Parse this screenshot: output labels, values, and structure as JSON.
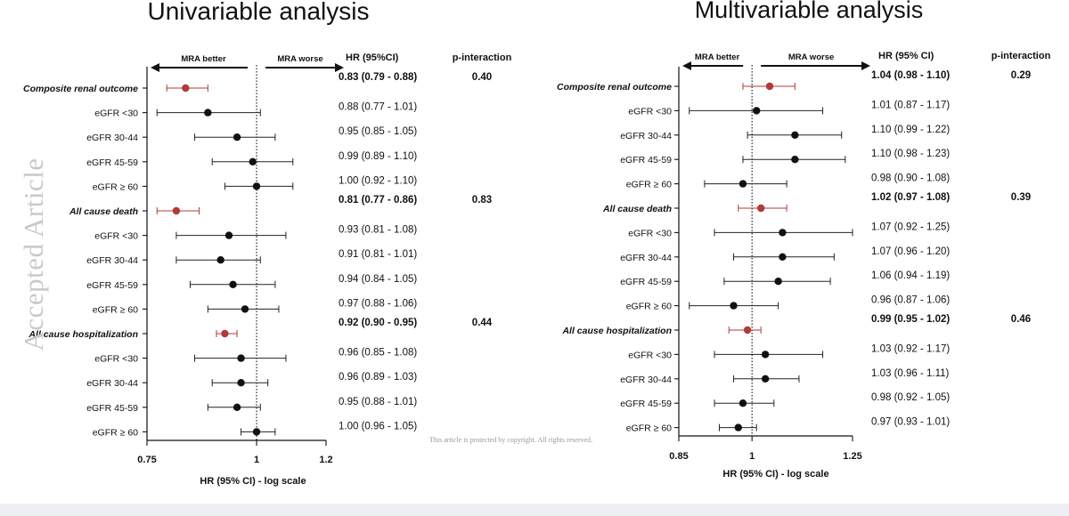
{
  "watermark": "Accepted Article",
  "copyright": "This article is protected by copyright. All rights reserved.",
  "colors": {
    "highlight": "#b03a3a",
    "marker": "#111111",
    "axis": "#111111",
    "ci_gray": "#888888"
  },
  "chart_data": [
    {
      "type": "forest",
      "title": "Univariable analysis",
      "xlabel": "HR (95% CI) - log scale",
      "scale": "log",
      "xlim": [
        0.75,
        1.2
      ],
      "ticks": [
        "0.75",
        "1",
        "1.2"
      ],
      "tick_values": [
        0.75,
        1.0,
        1.2
      ],
      "ref_line": 1,
      "arrow_left_label": "MRA better",
      "arrow_right_label": "MRA worse",
      "col_hr_header": "HR (95%CI)",
      "col_p_header": "p-interaction",
      "rows": [
        {
          "label": "Composite renal outcome",
          "group": true,
          "hr": 0.83,
          "lo": 0.79,
          "hi": 0.88,
          "text": "0.83 (0.79 - 0.88)",
          "p": "0.40"
        },
        {
          "label": "eGFR <30",
          "group": false,
          "hr": 0.88,
          "lo": 0.77,
          "hi": 1.01,
          "text": "0.88 (0.77 - 1.01)",
          "p": ""
        },
        {
          "label": "eGFR 30-44",
          "group": false,
          "hr": 0.95,
          "lo": 0.85,
          "hi": 1.05,
          "text": "0.95 (0.85 - 1.05)",
          "p": ""
        },
        {
          "label": "eGFR 45-59",
          "group": false,
          "hr": 0.99,
          "lo": 0.89,
          "hi": 1.1,
          "text": "0.99 (0.89 - 1.10)",
          "p": ""
        },
        {
          "label": "eGFR ≥ 60",
          "group": false,
          "hr": 1.0,
          "lo": 0.92,
          "hi": 1.1,
          "text": "1.00 (0.92 - 1.10)",
          "p": ""
        },
        {
          "label": "All cause death",
          "group": true,
          "hr": 0.81,
          "lo": 0.77,
          "hi": 0.86,
          "text": "0.81 (0.77 - 0.86)",
          "p": "0.83"
        },
        {
          "label": "eGFR <30",
          "group": false,
          "hr": 0.93,
          "lo": 0.81,
          "hi": 1.08,
          "text": "0.93 (0.81 - 1.08)",
          "p": ""
        },
        {
          "label": "eGFR 30-44",
          "group": false,
          "hr": 0.91,
          "lo": 0.81,
          "hi": 1.01,
          "text": "0.91 (0.81 - 1.01)",
          "p": ""
        },
        {
          "label": "eGFR 45-59",
          "group": false,
          "hr": 0.94,
          "lo": 0.84,
          "hi": 1.05,
          "text": "0.94 (0.84 - 1.05)",
          "p": ""
        },
        {
          "label": "eGFR ≥ 60",
          "group": false,
          "hr": 0.97,
          "lo": 0.88,
          "hi": 1.06,
          "text": "0.97 (0.88 - 1.06)",
          "p": ""
        },
        {
          "label": "All cause hospitalization",
          "group": true,
          "hr": 0.92,
          "lo": 0.9,
          "hi": 0.95,
          "text": "0.92 (0.90 - 0.95)",
          "p": "0.44"
        },
        {
          "label": "eGFR <30",
          "group": false,
          "hr": 0.96,
          "lo": 0.85,
          "hi": 1.08,
          "text": "0.96 (0.85 - 1.08)",
          "p": ""
        },
        {
          "label": "eGFR 30-44",
          "group": false,
          "hr": 0.96,
          "lo": 0.89,
          "hi": 1.03,
          "text": "0.96 (0.89 - 1.03)",
          "p": ""
        },
        {
          "label": "eGFR 45-59",
          "group": false,
          "hr": 0.95,
          "lo": 0.88,
          "hi": 1.01,
          "text": "0.95 (0.88 - 1.01)",
          "p": ""
        },
        {
          "label": "eGFR ≥ 60",
          "group": false,
          "hr": 1.0,
          "lo": 0.96,
          "hi": 1.05,
          "text": "1.00 (0.96 - 1.05)",
          "p": ""
        }
      ]
    },
    {
      "type": "forest",
      "title": "Multivariable analysis",
      "xlabel": "HR (95% CI) - log scale",
      "scale": "log",
      "xlim": [
        0.85,
        1.25
      ],
      "ticks": [
        "0.85",
        "1",
        "1.25"
      ],
      "tick_values": [
        0.85,
        1.0,
        1.25
      ],
      "ref_line": 1,
      "arrow_left_label": "MRA better",
      "arrow_right_label": "MRA worse",
      "col_hr_header": "HR (95% CI)",
      "col_p_header": "p-interaction",
      "rows": [
        {
          "label": "Composite renal outcome",
          "group": true,
          "hr": 1.04,
          "lo": 0.98,
          "hi": 1.1,
          "text": "1.04 (0.98 - 1.10)",
          "p": "0.29"
        },
        {
          "label": "eGFR <30",
          "group": false,
          "hr": 1.01,
          "lo": 0.87,
          "hi": 1.17,
          "text": "1.01 (0.87 - 1.17)",
          "p": ""
        },
        {
          "label": "eGFR 30-44",
          "group": false,
          "hr": 1.1,
          "lo": 0.99,
          "hi": 1.22,
          "text": "1.10 (0.99 - 1.22)",
          "p": ""
        },
        {
          "label": "eGFR 45-59",
          "group": false,
          "hr": 1.1,
          "lo": 0.98,
          "hi": 1.23,
          "text": "1.10 (0.98 - 1.23)",
          "p": ""
        },
        {
          "label": "eGFR ≥ 60",
          "group": false,
          "hr": 0.98,
          "lo": 0.9,
          "hi": 1.08,
          "text": "0.98 (0.90 - 1.08)",
          "p": ""
        },
        {
          "label": "All cause death",
          "group": true,
          "hr": 1.02,
          "lo": 0.97,
          "hi": 1.08,
          "text": "1.02 (0.97 - 1.08)",
          "p": "0.39"
        },
        {
          "label": "eGFR <30",
          "group": false,
          "hr": 1.07,
          "lo": 0.92,
          "hi": 1.25,
          "text": "1.07 (0.92 - 1.25)",
          "p": ""
        },
        {
          "label": "eGFR 30-44",
          "group": false,
          "hr": 1.07,
          "lo": 0.96,
          "hi": 1.2,
          "text": "1.07 (0.96 - 1.20)",
          "p": ""
        },
        {
          "label": "eGFR 45-59",
          "group": false,
          "hr": 1.06,
          "lo": 0.94,
          "hi": 1.19,
          "text": "1.06 (0.94 - 1.19)",
          "p": ""
        },
        {
          "label": "eGFR ≥ 60",
          "group": false,
          "hr": 0.96,
          "lo": 0.87,
          "hi": 1.06,
          "text": "0.96 (0.87 - 1.06)",
          "p": ""
        },
        {
          "label": "All cause hospitalization",
          "group": true,
          "hr": 0.99,
          "lo": 0.95,
          "hi": 1.02,
          "text": "0.99 (0.95 - 1.02)",
          "p": "0.46"
        },
        {
          "label": "eGFR <30",
          "group": false,
          "hr": 1.03,
          "lo": 0.92,
          "hi": 1.17,
          "text": "1.03 (0.92 - 1.17)",
          "p": ""
        },
        {
          "label": "eGFR 30-44",
          "group": false,
          "hr": 1.03,
          "lo": 0.96,
          "hi": 1.11,
          "text": "1.03 (0.96 - 1.11)",
          "p": ""
        },
        {
          "label": "eGFR 45-59",
          "group": false,
          "hr": 0.98,
          "lo": 0.92,
          "hi": 1.05,
          "text": "0.98 (0.92 - 1.05)",
          "p": ""
        },
        {
          "label": "eGFR ≥ 60",
          "group": false,
          "hr": 0.97,
          "lo": 0.93,
          "hi": 1.01,
          "text": "0.97 (0.93 - 1.01)",
          "p": ""
        }
      ]
    }
  ]
}
